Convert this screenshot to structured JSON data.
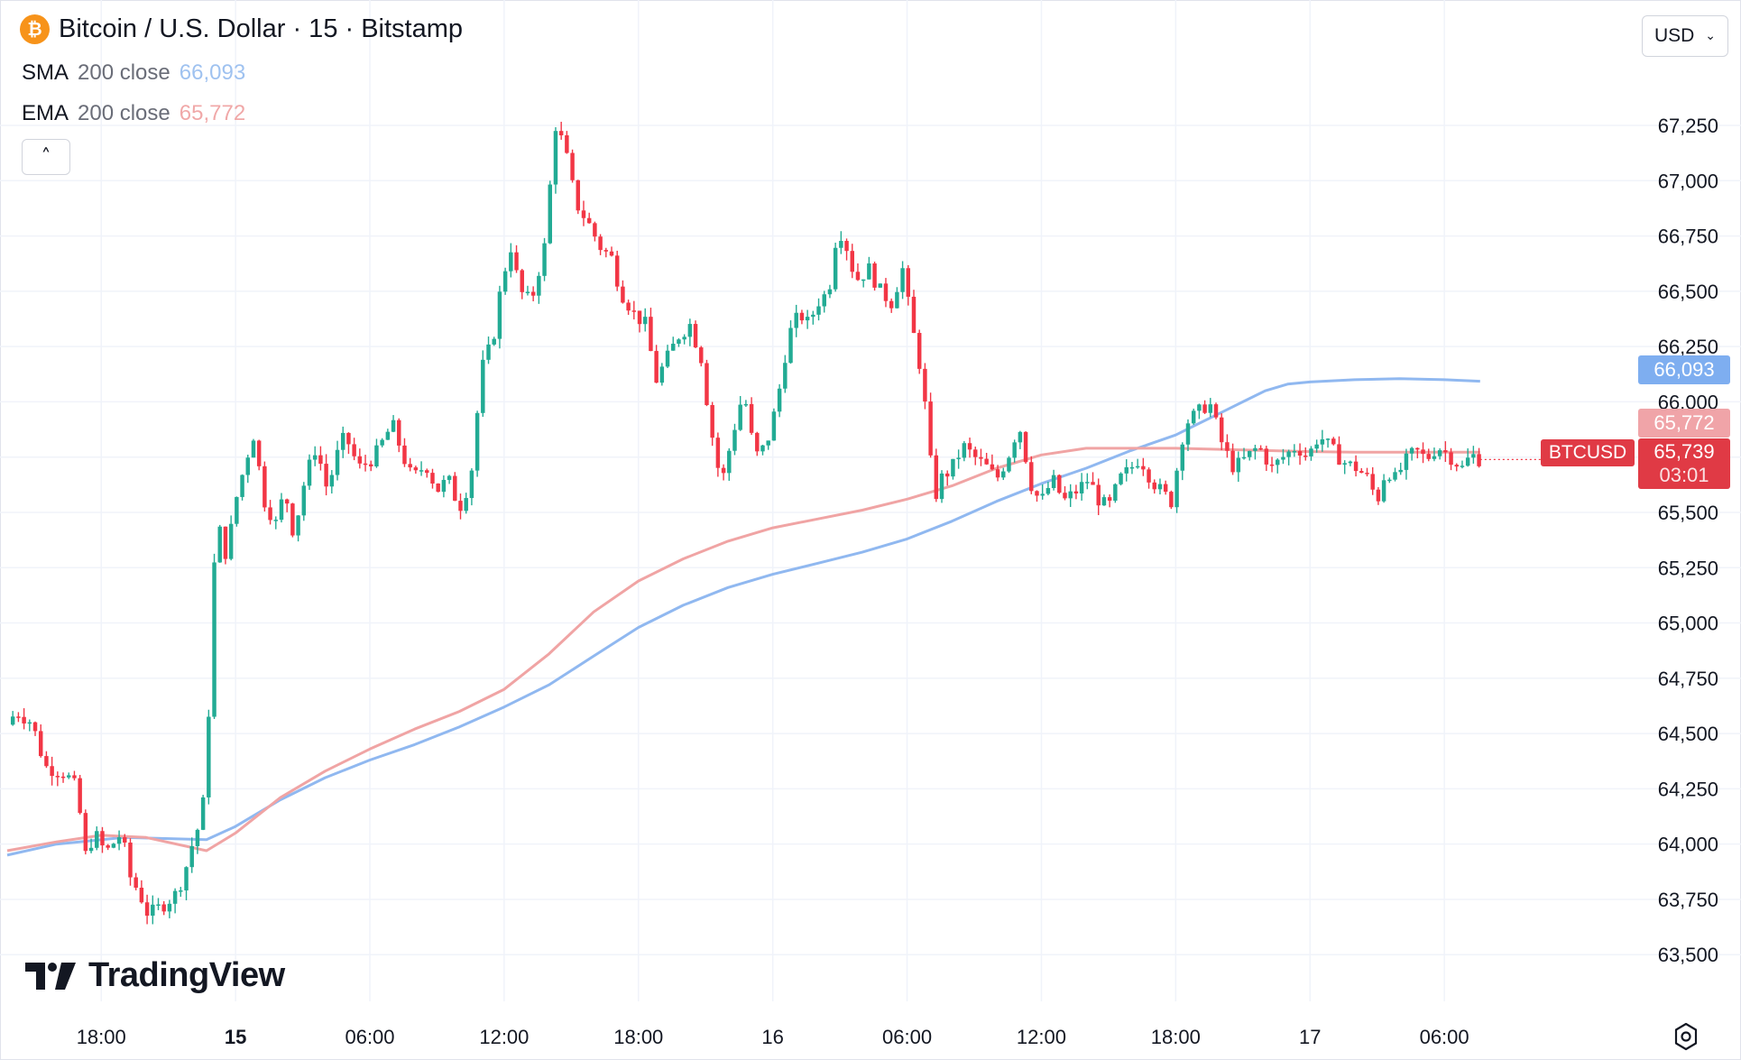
{
  "header": {
    "title": "Bitcoin / U.S. Dollar · 15 · Bitstamp",
    "coin_icon": "bitcoin-icon",
    "coin_glyph": "₿"
  },
  "indicators": [
    {
      "name": "SMA",
      "args": "200 close",
      "value": "66,093",
      "color": "#9fc2f0"
    },
    {
      "name": "EMA",
      "args": "200 close",
      "value": "65,772",
      "color": "#f0a8a8"
    }
  ],
  "collapse_glyph": "˄",
  "currency": {
    "selected": "USD",
    "chevron": "⌄"
  },
  "price_tags": {
    "sma": "66,093",
    "ema": "65,772",
    "symbol": "BTCUSD",
    "last": "65,739",
    "countdown": "03:01"
  },
  "brand": {
    "name": "TradingView"
  },
  "colors": {
    "up": "#22ab94",
    "down": "#f23645",
    "sma_line": "#90b8f0",
    "ema_line": "#f0a4a4",
    "grid": "#f0f3fa",
    "sma_tag": "#7eaef0",
    "ema_tag": "#f0a4a8",
    "last_tag": "#e03a45"
  },
  "chart_data": {
    "type": "candlestick",
    "title": "Bitcoin / U.S. Dollar · 15 · Bitstamp",
    "symbol": "BTCUSD",
    "interval": "15",
    "exchange": "Bitstamp",
    "ylim": [
      63350,
      67450
    ],
    "y_ticks": [
      63500,
      63750,
      64000,
      64250,
      64500,
      64750,
      65000,
      65250,
      65500,
      65750,
      66000,
      66250,
      66500,
      66750,
      67000,
      67250
    ],
    "y_tick_labels": [
      "63,500",
      "63,750",
      "64,000",
      "64,250",
      "64,500",
      "64,750",
      "65,000",
      "65,250",
      "65,500",
      "65,750",
      "66,000",
      "66,250",
      "66,500",
      "66,750",
      "67,000",
      "67,250"
    ],
    "x_tick_labels": [
      "18:00",
      "15",
      "06:00",
      "12:00",
      "18:00",
      "16",
      "06:00",
      "12:00",
      "18:00",
      "17",
      "06:00"
    ],
    "x_tick_bold": [
      false,
      true,
      false,
      false,
      false,
      false,
      false,
      false,
      false,
      false,
      false
    ],
    "x_tick_hours": [
      18,
      24,
      30,
      36,
      42,
      48,
      54,
      60,
      66,
      72,
      78
    ],
    "x_range_hours": [
      13.8,
      84.0
    ],
    "last_hour": 79.6,
    "grid": true,
    "anchors": [
      [
        13.8,
        64540
      ],
      [
        14.2,
        64600
      ],
      [
        14.9,
        64550
      ],
      [
        15.5,
        64350
      ],
      [
        16.4,
        64320
      ],
      [
        16.9,
        64250
      ],
      [
        17.3,
        63950
      ],
      [
        17.7,
        64050
      ],
      [
        18.2,
        63960
      ],
      [
        18.9,
        64050
      ],
      [
        19.3,
        63850
      ],
      [
        19.7,
        63780
      ],
      [
        20.1,
        63680
      ],
      [
        20.7,
        63720
      ],
      [
        21.4,
        63780
      ],
      [
        21.8,
        63900
      ],
      [
        22.2,
        64050
      ],
      [
        22.5,
        64100
      ],
      [
        22.8,
        64600
      ],
      [
        23.0,
        65200
      ],
      [
        23.2,
        65450
      ],
      [
        23.6,
        65300
      ],
      [
        24.0,
        65550
      ],
      [
        24.5,
        65750
      ],
      [
        24.8,
        65850
      ],
      [
        25.3,
        65550
      ],
      [
        25.8,
        65450
      ],
      [
        26.2,
        65600
      ],
      [
        26.6,
        65400
      ],
      [
        27.1,
        65650
      ],
      [
        27.6,
        65800
      ],
      [
        28.1,
        65600
      ],
      [
        28.5,
        65750
      ],
      [
        28.9,
        65850
      ],
      [
        29.5,
        65700
      ],
      [
        30.2,
        65750
      ],
      [
        31.0,
        65900
      ],
      [
        31.5,
        65750
      ],
      [
        31.9,
        65650
      ],
      [
        32.5,
        65720
      ],
      [
        33.0,
        65600
      ],
      [
        33.5,
        65650
      ],
      [
        34.0,
        65520
      ],
      [
        34.5,
        65650
      ],
      [
        35.0,
        66150
      ],
      [
        35.5,
        66280
      ],
      [
        35.9,
        66550
      ],
      [
        36.3,
        66700
      ],
      [
        36.7,
        66500
      ],
      [
        37.2,
        66450
      ],
      [
        37.8,
        66700
      ],
      [
        38.3,
        67250
      ],
      [
        38.7,
        67150
      ],
      [
        39.2,
        66900
      ],
      [
        39.8,
        66800
      ],
      [
        40.3,
        66700
      ],
      [
        40.8,
        66650
      ],
      [
        41.2,
        66500
      ],
      [
        41.8,
        66400
      ],
      [
        42.3,
        66350
      ],
      [
        42.8,
        66100
      ],
      [
        43.3,
        66200
      ],
      [
        43.8,
        66300
      ],
      [
        44.3,
        66350
      ],
      [
        44.8,
        66200
      ],
      [
        45.2,
        65900
      ],
      [
        45.7,
        65620
      ],
      [
        46.2,
        65850
      ],
      [
        46.7,
        66050
      ],
      [
        47.2,
        65750
      ],
      [
        47.7,
        65800
      ],
      [
        48.2,
        66000
      ],
      [
        48.7,
        66300
      ],
      [
        49.2,
        66400
      ],
      [
        49.6,
        66350
      ],
      [
        50.0,
        66450
      ],
      [
        50.5,
        66500
      ],
      [
        50.9,
        66800
      ],
      [
        51.3,
        66700
      ],
      [
        51.7,
        66550
      ],
      [
        52.3,
        66600
      ],
      [
        52.8,
        66500
      ],
      [
        53.3,
        66450
      ],
      [
        53.8,
        66600
      ],
      [
        54.2,
        66350
      ],
      [
        54.6,
        66150
      ],
      [
        54.9,
        65900
      ],
      [
        55.2,
        65550
      ],
      [
        55.5,
        65650
      ],
      [
        56.0,
        65700
      ],
      [
        56.5,
        65800
      ],
      [
        57.0,
        65750
      ],
      [
        57.6,
        65700
      ],
      [
        58.0,
        65650
      ],
      [
        58.5,
        65750
      ],
      [
        59.0,
        65900
      ],
      [
        59.3,
        65750
      ],
      [
        59.6,
        65600
      ],
      [
        60.0,
        65550
      ],
      [
        60.5,
        65650
      ],
      [
        61.0,
        65550
      ],
      [
        61.6,
        65600
      ],
      [
        62.1,
        65650
      ],
      [
        62.6,
        65550
      ],
      [
        63.0,
        65520
      ],
      [
        63.5,
        65650
      ],
      [
        64.0,
        65700
      ],
      [
        64.4,
        65750
      ],
      [
        64.9,
        65650
      ],
      [
        65.3,
        65600
      ],
      [
        65.8,
        65550
      ],
      [
        66.4,
        65900
      ],
      [
        67.0,
        65950
      ],
      [
        67.5,
        66000
      ],
      [
        68.1,
        65800
      ],
      [
        68.6,
        65700
      ],
      [
        69.2,
        65750
      ],
      [
        69.7,
        65800
      ],
      [
        70.3,
        65700
      ],
      [
        70.8,
        65750
      ],
      [
        71.4,
        65800
      ],
      [
        71.9,
        65750
      ],
      [
        72.4,
        65850
      ],
      [
        73.0,
        65780
      ],
      [
        73.6,
        65720
      ],
      [
        74.1,
        65700
      ],
      [
        74.6,
        65650
      ],
      [
        75.0,
        65550
      ],
      [
        75.4,
        65700
      ],
      [
        75.8,
        65650
      ],
      [
        76.2,
        65720
      ],
      [
        76.7,
        65780
      ],
      [
        77.2,
        65740
      ],
      [
        77.7,
        65800
      ],
      [
        78.3,
        65750
      ],
      [
        78.8,
        65700
      ],
      [
        79.2,
        65760
      ],
      [
        79.6,
        65739
      ]
    ],
    "series": [
      {
        "name": "SMA 200 close",
        "color": "#90b8f0",
        "last_value": 66093,
        "points": [
          [
            13.8,
            63950
          ],
          [
            16.0,
            64000
          ],
          [
            19.0,
            64030
          ],
          [
            22.7,
            64020
          ],
          [
            24.0,
            64080
          ],
          [
            26.0,
            64200
          ],
          [
            28.0,
            64300
          ],
          [
            30.0,
            64380
          ],
          [
            32.0,
            64450
          ],
          [
            34.0,
            64530
          ],
          [
            36.0,
            64620
          ],
          [
            38.0,
            64720
          ],
          [
            40.0,
            64850
          ],
          [
            42.0,
            64980
          ],
          [
            44.0,
            65080
          ],
          [
            46.0,
            65160
          ],
          [
            48.0,
            65220
          ],
          [
            50.0,
            65270
          ],
          [
            52.0,
            65320
          ],
          [
            54.0,
            65380
          ],
          [
            56.0,
            65460
          ],
          [
            58.0,
            65550
          ],
          [
            60.0,
            65630
          ],
          [
            62.0,
            65700
          ],
          [
            64.0,
            65780
          ],
          [
            66.0,
            65850
          ],
          [
            67.0,
            65900
          ],
          [
            68.0,
            65950
          ],
          [
            69.0,
            66000
          ],
          [
            70.0,
            66050
          ],
          [
            71.0,
            66080
          ],
          [
            72.0,
            66090
          ],
          [
            74.0,
            66100
          ],
          [
            76.0,
            66105
          ],
          [
            78.0,
            66100
          ],
          [
            79.6,
            66093
          ]
        ]
      },
      {
        "name": "EMA 200 close",
        "color": "#f0a4a4",
        "last_value": 65772,
        "points": [
          [
            13.8,
            63970
          ],
          [
            16.0,
            64010
          ],
          [
            18.0,
            64040
          ],
          [
            20.0,
            64030
          ],
          [
            22.7,
            63970
          ],
          [
            24.0,
            64050
          ],
          [
            26.0,
            64210
          ],
          [
            28.0,
            64330
          ],
          [
            30.0,
            64430
          ],
          [
            32.0,
            64520
          ],
          [
            34.0,
            64600
          ],
          [
            36.0,
            64700
          ],
          [
            38.0,
            64860
          ],
          [
            40.0,
            65050
          ],
          [
            42.0,
            65190
          ],
          [
            44.0,
            65290
          ],
          [
            46.0,
            65370
          ],
          [
            48.0,
            65430
          ],
          [
            50.0,
            65470
          ],
          [
            52.0,
            65510
          ],
          [
            54.0,
            65560
          ],
          [
            56.0,
            65620
          ],
          [
            58.0,
            65700
          ],
          [
            60.0,
            65760
          ],
          [
            62.0,
            65790
          ],
          [
            64.0,
            65790
          ],
          [
            66.0,
            65790
          ],
          [
            68.0,
            65785
          ],
          [
            70.0,
            65780
          ],
          [
            72.0,
            65775
          ],
          [
            74.0,
            65772
          ],
          [
            76.0,
            65772
          ],
          [
            78.0,
            65772
          ],
          [
            79.6,
            65772
          ]
        ]
      }
    ],
    "legend": [
      "SMA 200 close",
      "EMA 200 close"
    ]
  }
}
